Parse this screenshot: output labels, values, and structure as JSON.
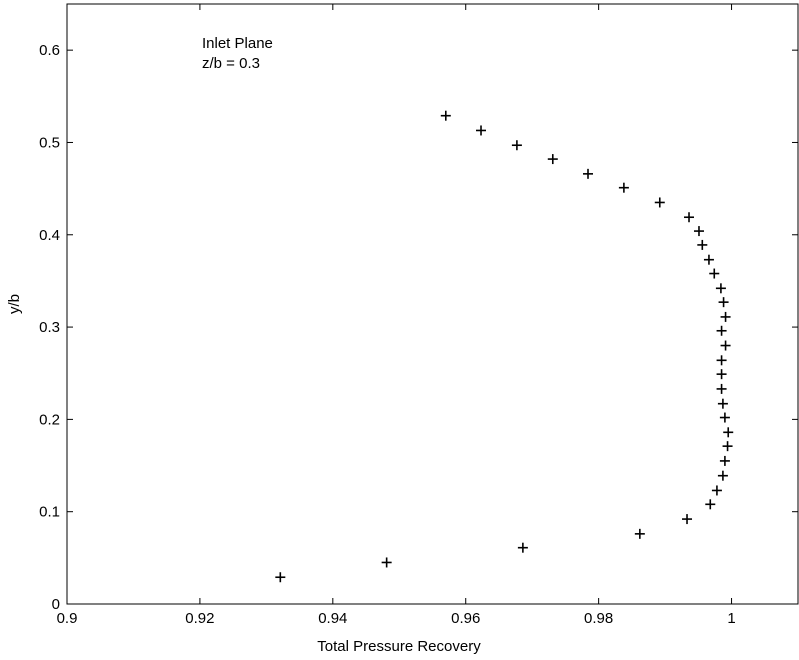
{
  "chart_data": {
    "type": "scatter",
    "title": "",
    "xlabel": "Total Pressure Recovery",
    "ylabel": "y/b",
    "xlim": [
      0.9,
      1.01
    ],
    "ylim": [
      0,
      0.65
    ],
    "x_ticks": [
      0.9,
      0.92,
      0.94,
      0.96,
      0.98,
      1.0
    ],
    "x_tick_labels": [
      "0.9",
      "0.92",
      "0.94",
      "0.96",
      "0.98",
      "1"
    ],
    "y_ticks": [
      0,
      0.1,
      0.2,
      0.3,
      0.4,
      0.5,
      0.6
    ],
    "y_tick_labels": [
      "0",
      "0.1",
      "0.2",
      "0.3",
      "0.4",
      "0.5",
      "0.6"
    ],
    "grid": false,
    "marker": "+",
    "marker_color": "#000000",
    "annotation": [
      "Inlet Plane",
      "z/b = 0.3"
    ],
    "points": [
      {
        "x": 0.9321,
        "y": 0.029
      },
      {
        "x": 0.9481,
        "y": 0.045
      },
      {
        "x": 0.9686,
        "y": 0.061
      },
      {
        "x": 0.9862,
        "y": 0.076
      },
      {
        "x": 0.9933,
        "y": 0.092
      },
      {
        "x": 0.9968,
        "y": 0.108
      },
      {
        "x": 0.9978,
        "y": 0.123
      },
      {
        "x": 0.9987,
        "y": 0.139
      },
      {
        "x": 0.999,
        "y": 0.155
      },
      {
        "x": 0.9994,
        "y": 0.171
      },
      {
        "x": 0.9995,
        "y": 0.186
      },
      {
        "x": 0.999,
        "y": 0.202
      },
      {
        "x": 0.9987,
        "y": 0.217
      },
      {
        "x": 0.9985,
        "y": 0.233
      },
      {
        "x": 0.9985,
        "y": 0.249
      },
      {
        "x": 0.9985,
        "y": 0.264
      },
      {
        "x": 0.9991,
        "y": 0.28
      },
      {
        "x": 0.9985,
        "y": 0.296
      },
      {
        "x": 0.9991,
        "y": 0.311
      },
      {
        "x": 0.9988,
        "y": 0.327
      },
      {
        "x": 0.9984,
        "y": 0.342
      },
      {
        "x": 0.9974,
        "y": 0.358
      },
      {
        "x": 0.9966,
        "y": 0.373
      },
      {
        "x": 0.9956,
        "y": 0.389
      },
      {
        "x": 0.9951,
        "y": 0.404
      },
      {
        "x": 0.9936,
        "y": 0.419
      },
      {
        "x": 0.9892,
        "y": 0.435
      },
      {
        "x": 0.9838,
        "y": 0.451
      },
      {
        "x": 0.9784,
        "y": 0.466
      },
      {
        "x": 0.9731,
        "y": 0.482
      },
      {
        "x": 0.9677,
        "y": 0.497
      },
      {
        "x": 0.9623,
        "y": 0.513
      },
      {
        "x": 0.957,
        "y": 0.529
      }
    ]
  }
}
